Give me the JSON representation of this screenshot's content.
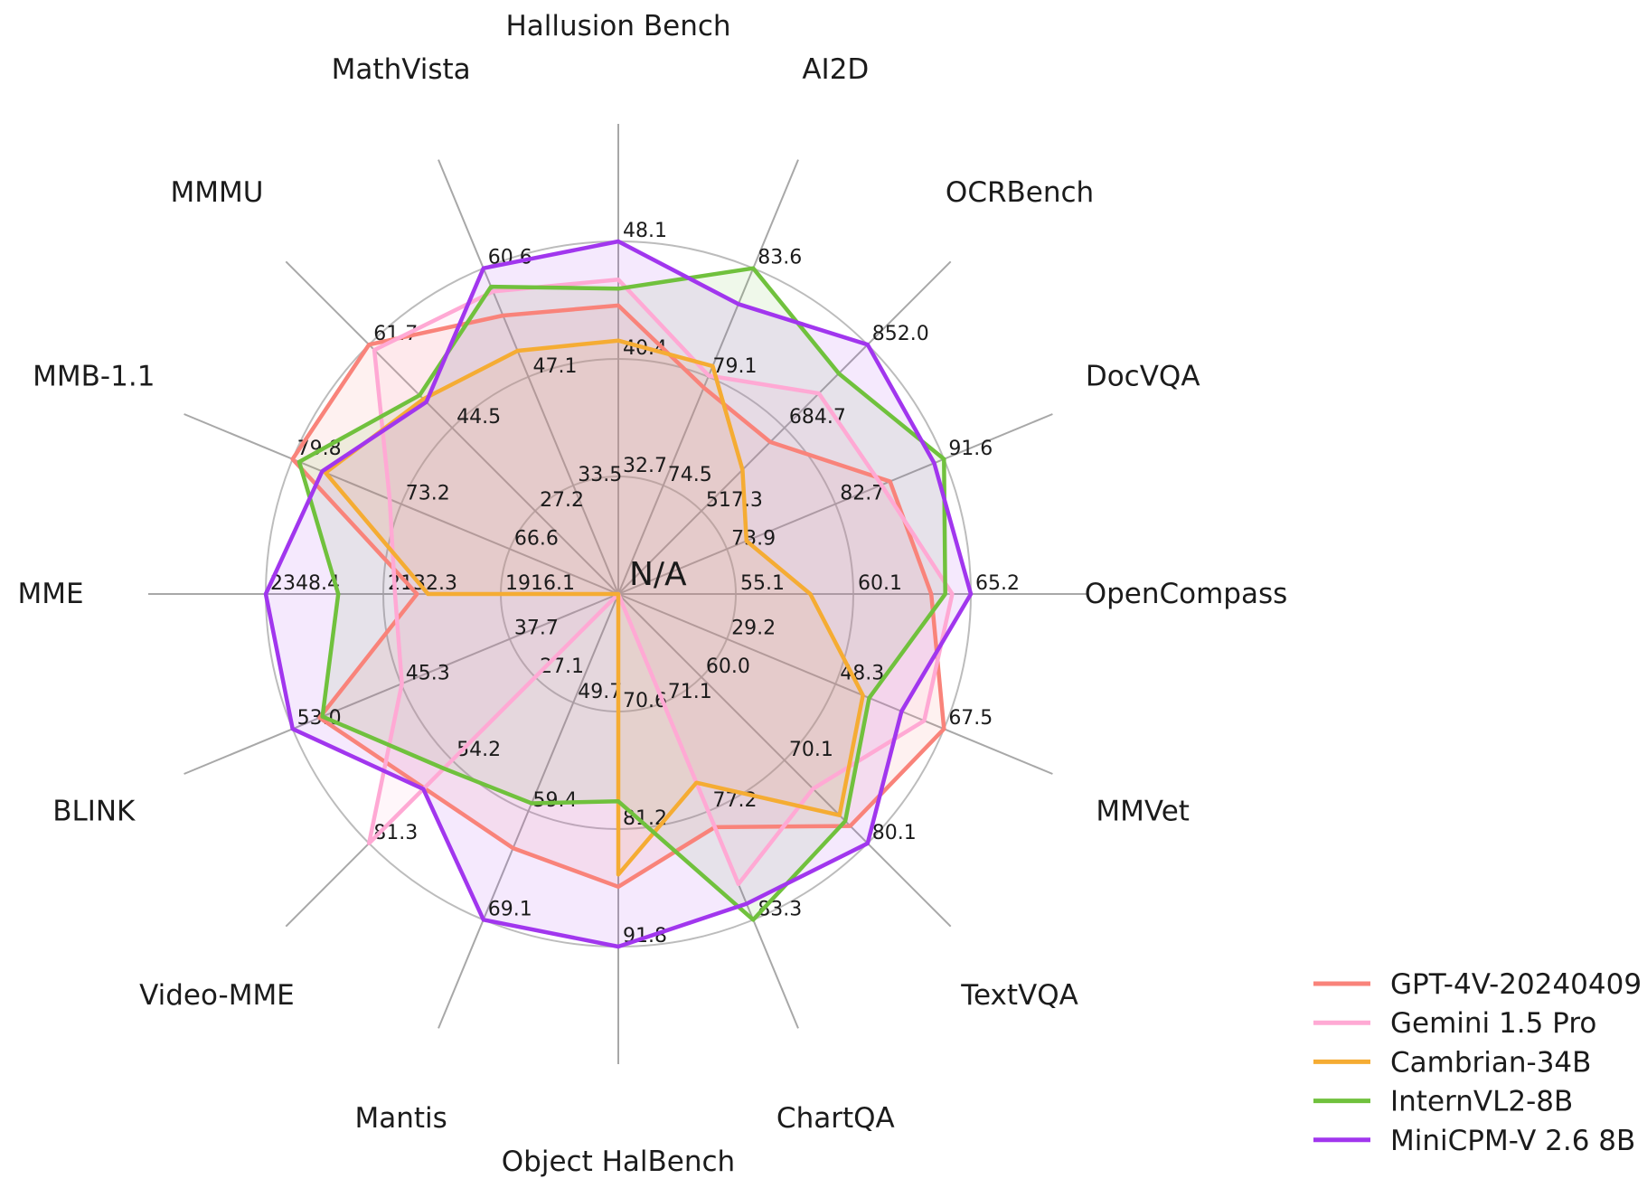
{
  "chart_data": {
    "type": "radar",
    "title": "",
    "center_label": "N/A",
    "grid": {
      "rings": 3,
      "shape": "circle",
      "color": "#b6b6b6"
    },
    "legend_position": "lower right",
    "axes": [
      {
        "label": "Hallusion Bench",
        "tick_labels": [
          "32.7",
          "40.4",
          "48.1"
        ],
        "ticks": [
          32.7,
          40.4,
          48.1
        ]
      },
      {
        "label": "AI2D",
        "tick_labels": [
          "74.5",
          "79.1",
          "83.6"
        ],
        "ticks": [
          74.5,
          79.1,
          83.6
        ]
      },
      {
        "label": "OCRBench",
        "tick_labels": [
          "517.3",
          "684.7",
          "852.0"
        ],
        "ticks": [
          517.3,
          684.7,
          852.0
        ]
      },
      {
        "label": "DocVQA",
        "tick_labels": [
          "73.9",
          "82.7",
          "91.6"
        ],
        "ticks": [
          73.9,
          82.7,
          91.6
        ]
      },
      {
        "label": "OpenCompass",
        "tick_labels": [
          "55.1",
          "60.1",
          "65.2"
        ],
        "ticks": [
          55.1,
          60.1,
          65.2
        ]
      },
      {
        "label": "MMVet",
        "tick_labels": [
          "29.2",
          "48.3",
          "67.5"
        ],
        "ticks": [
          29.2,
          48.3,
          67.5
        ]
      },
      {
        "label": "TextVQA",
        "tick_labels": [
          "60.0",
          "70.1",
          "80.1"
        ],
        "ticks": [
          60.0,
          70.1,
          80.1
        ]
      },
      {
        "label": "ChartQA",
        "tick_labels": [
          "71.1",
          "77.2",
          "83.3"
        ],
        "ticks": [
          71.1,
          77.2,
          83.3
        ]
      },
      {
        "label": "Object HalBench",
        "tick_labels": [
          "70.6",
          "81.2",
          "91.8"
        ],
        "ticks": [
          70.6,
          81.2,
          91.8
        ]
      },
      {
        "label": "Mantis",
        "tick_labels": [
          "49.7",
          "59.4",
          "69.1"
        ],
        "ticks": [
          49.7,
          59.4,
          69.1
        ]
      },
      {
        "label": "Video-MME",
        "tick_labels": [
          "27.1",
          "54.2",
          "81.3"
        ],
        "ticks": [
          27.1,
          54.2,
          81.3
        ]
      },
      {
        "label": "BLINK",
        "tick_labels": [
          "37.7",
          "45.3",
          "53.0"
        ],
        "ticks": [
          37.7,
          45.3,
          53.0
        ]
      },
      {
        "label": "MME",
        "tick_labels": [
          "1916.1",
          "2132.3",
          "2348.4"
        ],
        "ticks": [
          1916.1,
          2132.3,
          2348.4
        ]
      },
      {
        "label": "MMB-1.1",
        "tick_labels": [
          "66.6",
          "73.2",
          "79.8"
        ],
        "ticks": [
          66.6,
          73.2,
          79.8
        ]
      },
      {
        "label": "MMMU",
        "tick_labels": [
          "27.2",
          "44.5",
          "61.7"
        ],
        "ticks": [
          27.2,
          44.5,
          61.7
        ]
      },
      {
        "label": "MathVista",
        "tick_labels": [
          "33.5",
          "47.1",
          "60.6"
        ],
        "ticks": [
          33.5,
          47.1,
          60.6
        ]
      }
    ],
    "series": [
      {
        "name": "GPT-4V-20240409",
        "color": "#F9837A",
        "values": [
          43.9,
          78.6,
          656.0,
          87.2,
          63.5,
          67.5,
          78.0,
          78.1,
          86.4,
          62.7,
          63.3,
          51.1,
          2070.2,
          79.8,
          61.7,
          54.7
        ]
      },
      {
        "name": "Gemini 1.5 Pro",
        "color": "#FFA9D4",
        "values": [
          45.6,
          79.1,
          754.0,
          86.5,
          64.4,
          64.0,
          73.5,
          81.3,
          null,
          null,
          81.3,
          45.3,
          2110.6,
          73.9,
          60.6,
          57.7
        ]
      },
      {
        "name": "Cambrian-34B",
        "color": "#F5AC33",
        "values": [
          41.6,
          79.5,
          600.0,
          75.5,
          58.3,
          53.2,
          76.7,
          75.6,
          85.3,
          null,
          null,
          null,
          2049.9,
          77.8,
          50.4,
          50.3
        ]
      },
      {
        "name": "InternVL2-8B",
        "color": "#70C13D",
        "values": [
          45.0,
          83.6,
          794.0,
          91.6,
          64.1,
          54.3,
          77.4,
          83.3,
          78.7,
          58.7,
          56.9,
          50.9,
          2215.1,
          79.4,
          51.2,
          58.3
        ]
      },
      {
        "name": "MiniCPM-V 2.6 8B",
        "color": "#A136EE",
        "values": [
          48.1,
          82.1,
          852.0,
          90.8,
          65.2,
          60.0,
          80.1,
          82.4,
          91.8,
          69.1,
          63.6,
          53.0,
          2348.4,
          78.0,
          49.8,
          60.6
        ]
      }
    ],
    "na_note": "null values are plotted at the chart center, which is labeled N/A"
  }
}
